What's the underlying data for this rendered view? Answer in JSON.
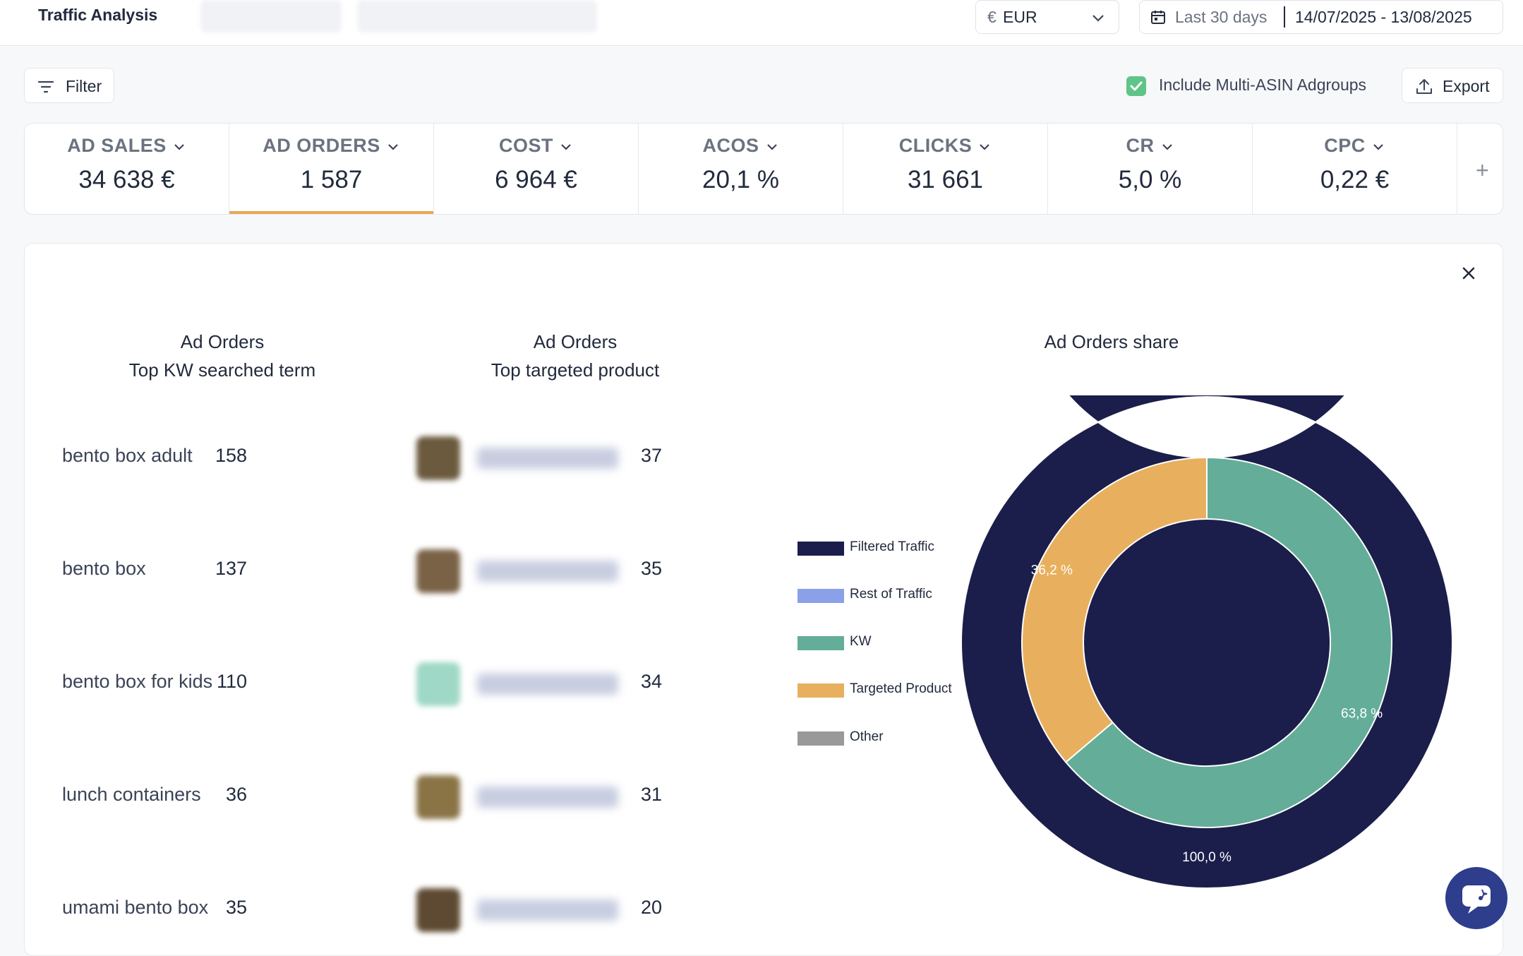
{
  "header": {
    "title": "Traffic Analysis",
    "currency_symbol": "€",
    "currency": "EUR",
    "date_preset": "Last 30 days",
    "date_range": "14/07/2025 - 13/08/2025"
  },
  "toolbar": {
    "filter_label": "Filter",
    "multi_asin_label": "Include Multi-ASIN Adgroups",
    "multi_asin_checked": true,
    "export_label": "Export"
  },
  "kpis": [
    {
      "label": "AD SALES",
      "value": "34 638 €"
    },
    {
      "label": "AD ORDERS",
      "value": "1 587",
      "active": true
    },
    {
      "label": "COST",
      "value": "6 964 €"
    },
    {
      "label": "ACOS",
      "value": "20,1 %"
    },
    {
      "label": "CLICKS",
      "value": "31 661"
    },
    {
      "label": "CR",
      "value": "5,0 %"
    },
    {
      "label": "CPC",
      "value": "0,22 €"
    }
  ],
  "kw_table": {
    "title_line1": "Ad Orders",
    "title_line2": "Top KW searched term",
    "rows": [
      {
        "term": "bento box adult",
        "count": "158"
      },
      {
        "term": "bento box",
        "count": "137"
      },
      {
        "term": "bento box for kids",
        "count": "110"
      },
      {
        "term": "lunch containers",
        "count": "36"
      },
      {
        "term": "umami bento box",
        "count": "35"
      }
    ]
  },
  "product_table": {
    "title_line1": "Ad Orders",
    "title_line2": "Top targeted product",
    "rows": [
      {
        "count": "37"
      },
      {
        "count": "35"
      },
      {
        "count": "34"
      },
      {
        "count": "31"
      },
      {
        "count": "20"
      }
    ]
  },
  "chart_data": {
    "type": "pie",
    "title": "Ad Orders share",
    "legend": [
      {
        "name": "Filtered Traffic",
        "color": "#1b1e4b"
      },
      {
        "name": "Rest of Traffic",
        "color": "#8aa0e8"
      },
      {
        "name": "KW",
        "color": "#63ad99"
      },
      {
        "name": "Targeted Product",
        "color": "#e8b05e"
      },
      {
        "name": "Other",
        "color": "#999999"
      }
    ],
    "outer_ring": [
      {
        "name": "Filtered Traffic",
        "value": 100.0,
        "label": "100,0 %"
      }
    ],
    "inner_ring": [
      {
        "name": "KW",
        "value": 63.8,
        "label": "63,8 %"
      },
      {
        "name": "Targeted Product",
        "value": 36.2,
        "label": "36,2 %"
      }
    ],
    "legend_position": "left"
  }
}
